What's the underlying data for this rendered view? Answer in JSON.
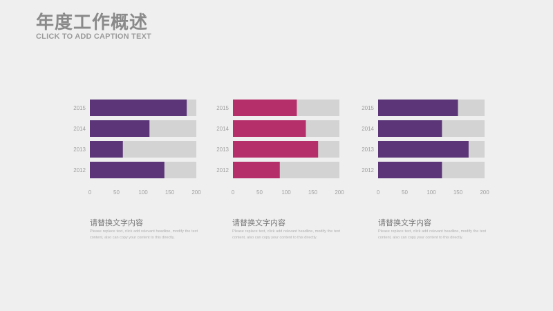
{
  "page": {
    "title": "年度工作概述",
    "subtitle": "CLICK TO ADD CAPTION TEXT"
  },
  "colors": {
    "background": "#efefef",
    "track": "#d3d3d3",
    "purple": "#5b3577",
    "magenta": "#b5306a"
  },
  "panels": [
    {
      "heading": "请替换文字内容",
      "body": "Please replace text, click add relevant headline, modify the text content, also can copy your content to this directly."
    },
    {
      "heading": "请替换文字内容",
      "body": "Please replace text, click add relevant headline, modify the text content, also can copy your content to this directly."
    },
    {
      "heading": "请替换文字内容",
      "body": "Please replace text, click add relevant headline, modify the text content, also can copy your content to this directly."
    }
  ],
  "chart_data": [
    {
      "type": "bar",
      "orientation": "horizontal",
      "categories": [
        "2015",
        "2014",
        "2013",
        "2012"
      ],
      "values": [
        182,
        112,
        62,
        140
      ],
      "track_max": 200,
      "xlim": [
        0,
        200
      ],
      "xticks": [
        0,
        50,
        100,
        150,
        200
      ],
      "bar_color": "#5b3577",
      "track_color": "#d3d3d3"
    },
    {
      "type": "bar",
      "orientation": "horizontal",
      "categories": [
        "2015",
        "2014",
        "2013",
        "2012"
      ],
      "values": [
        120,
        137,
        160,
        88
      ],
      "track_max": 200,
      "xlim": [
        0,
        200
      ],
      "xticks": [
        0,
        50,
        100,
        150,
        200
      ],
      "bar_color": "#b5306a",
      "track_color": "#d3d3d3"
    },
    {
      "type": "bar",
      "orientation": "horizontal",
      "categories": [
        "2015",
        "2014",
        "2013",
        "2012"
      ],
      "values": [
        150,
        120,
        170,
        120
      ],
      "track_max": 200,
      "xlim": [
        0,
        200
      ],
      "xticks": [
        0,
        50,
        100,
        150,
        200
      ],
      "bar_color": "#5b3577",
      "track_color": "#d3d3d3"
    }
  ]
}
